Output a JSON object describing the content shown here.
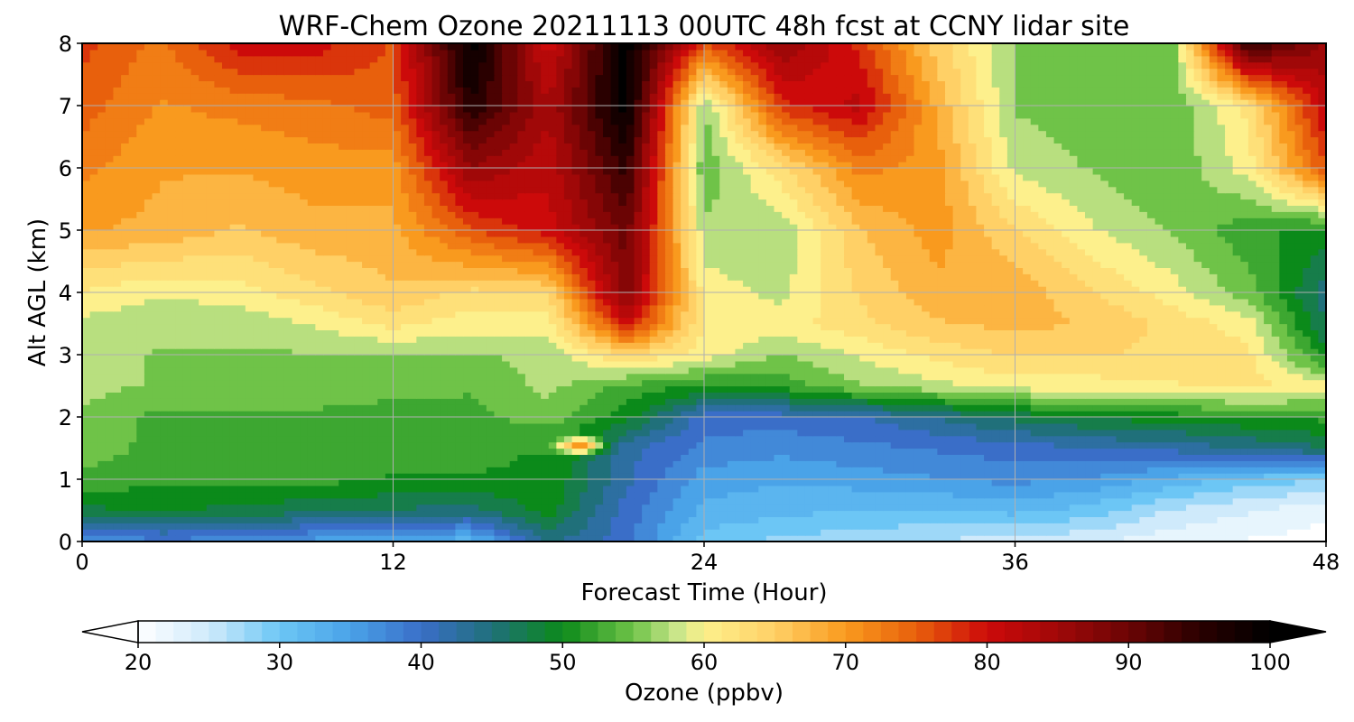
{
  "chart_data": {
    "type": "heatmap",
    "title": "WRF-Chem Ozone  20211113 00UTC 48h fcst at CCNY lidar site",
    "xlabel": "Forecast Time (Hour)",
    "ylabel": "Alt AGL (km)",
    "xlim": [
      0,
      48
    ],
    "ylim": [
      0,
      8
    ],
    "x_ticks": [
      "0",
      "12",
      "24",
      "36",
      "48"
    ],
    "y_ticks": [
      "0",
      "1",
      "2",
      "3",
      "4",
      "5",
      "6",
      "7",
      "8"
    ],
    "grid": true,
    "colorbar": {
      "label": "Ozone  (ppbv)",
      "range": [
        20,
        100
      ],
      "ticks": [
        "20",
        "30",
        "40",
        "50",
        "60",
        "70",
        "80",
        "90",
        "100"
      ],
      "extend": "both",
      "colors": {
        "20": "#ffffff",
        "25": "#cfeafb",
        "30": "#6cc6f5",
        "35": "#4aa3e8",
        "40": "#3a6ec8",
        "45": "#20707a",
        "50": "#0b8a1a",
        "55": "#6fc348",
        "58": "#c7e58a",
        "60": "#fdf08c",
        "65": "#ffd066",
        "70": "#f99a1e",
        "75": "#e8600c",
        "80": "#cc0a0a",
        "85": "#a00808",
        "90": "#6b0404",
        "95": "#2a0000",
        "100": "#000000"
      }
    },
    "x_hours": [
      0,
      3,
      6,
      9,
      12,
      15,
      18,
      21,
      24,
      27,
      30,
      33,
      36,
      39,
      42,
      45,
      48
    ],
    "y_km": [
      0,
      0.5,
      1,
      1.5,
      2,
      2.5,
      3,
      3.5,
      4,
      5,
      6,
      7,
      8
    ],
    "z_ppbv": [
      [
        36,
        38,
        37,
        35,
        34,
        32,
        44,
        40,
        30,
        28,
        27,
        26,
        25,
        24,
        22,
        21,
        20
      ],
      [
        48,
        49,
        48,
        47,
        46,
        45,
        50,
        40,
        33,
        32,
        31,
        31,
        32,
        30,
        26,
        24,
        22
      ],
      [
        53,
        52,
        52,
        52,
        51,
        51,
        51,
        42,
        35,
        34,
        35,
        36,
        37,
        36,
        33,
        30,
        29
      ],
      [
        55,
        53,
        52,
        53,
        52,
        52,
        51,
        42,
        38,
        37,
        38,
        39,
        40,
        41,
        42,
        44,
        46
      ],
      [
        56,
        53,
        53,
        53,
        52,
        53,
        55,
        50,
        40,
        40,
        41,
        44,
        47,
        49,
        50,
        51,
        52
      ],
      [
        57,
        56,
        56,
        56,
        55,
        54,
        57,
        53,
        51,
        52,
        56,
        58,
        60,
        60,
        61,
        62,
        60
      ],
      [
        57,
        56,
        56,
        56,
        56,
        56,
        57,
        64,
        60,
        56,
        59,
        62,
        64,
        64,
        63,
        62,
        50
      ],
      [
        58,
        57,
        57,
        59,
        62,
        60,
        60,
        80,
        61,
        60,
        63,
        66,
        67,
        66,
        63,
        60,
        46
      ],
      [
        61,
        59,
        60,
        63,
        66,
        63,
        64,
        88,
        60,
        58,
        64,
        68,
        68,
        64,
        60,
        55,
        45
      ],
      [
        69,
        68,
        66,
        68,
        68,
        76,
        80,
        90,
        57,
        57,
        66,
        70,
        64,
        59,
        56,
        52,
        50
      ],
      [
        72,
        69,
        69,
        70,
        70,
        86,
        82,
        95,
        54,
        63,
        72,
        70,
        58,
        56,
        54,
        60,
        76
      ],
      [
        75,
        71,
        72,
        73,
        75,
        96,
        84,
        100,
        56,
        78,
        82,
        68,
        56,
        55,
        54,
        62,
        82
      ],
      [
        77,
        73,
        80,
        80,
        76,
        100,
        80,
        100,
        76,
        86,
        78,
        65,
        56,
        55,
        54,
        95,
        86
      ]
    ],
    "features": [
      {
        "type": "spot",
        "label": "",
        "x_hour": 19.2,
        "y_km": 1.55,
        "value": 72
      }
    ]
  }
}
